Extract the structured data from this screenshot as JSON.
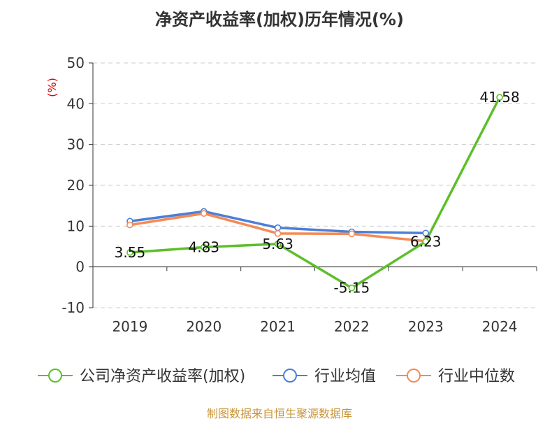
{
  "chart_data": {
    "type": "line",
    "title": "净资产收益率(加权)历年情况(%)",
    "ylabel": "(%)",
    "categories": [
      "2019",
      "2020",
      "2021",
      "2022",
      "2023",
      "2024"
    ],
    "ylim": [
      -10,
      50
    ],
    "yticks": [
      -10,
      0,
      10,
      20,
      30,
      40,
      50
    ],
    "grid": true,
    "legend_position": "bottom",
    "series": [
      {
        "name": "公司净资产收益率(加权)",
        "color": "#5cbf2a",
        "values": [
          3.55,
          4.83,
          5.63,
          -5.15,
          6.23,
          41.58
        ],
        "labels": [
          "3.55",
          "4.83",
          "5.63",
          "-5.15",
          "6.23",
          "41.58"
        ]
      },
      {
        "name": "行业均值",
        "color": "#4a7fd8",
        "values": [
          11.2,
          13.6,
          9.6,
          8.6,
          8.3,
          null
        ]
      },
      {
        "name": "行业中位数",
        "color": "#f58a55",
        "values": [
          10.3,
          13.1,
          8.2,
          8.1,
          6.3,
          null
        ]
      }
    ]
  },
  "source": "制图数据来自恒生聚源数据库"
}
